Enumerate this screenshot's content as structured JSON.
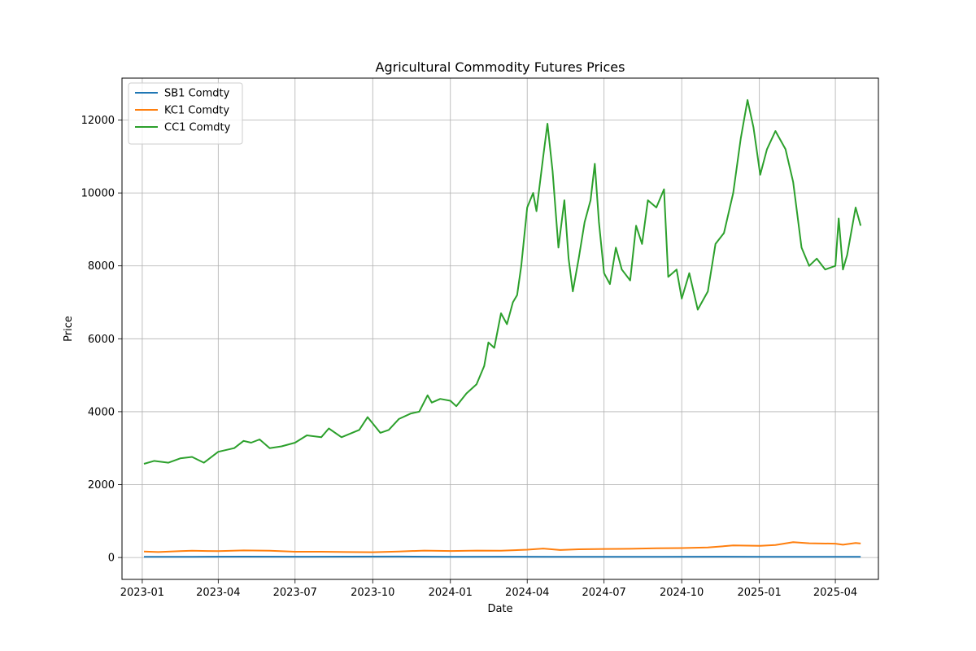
{
  "chart_data": {
    "type": "line",
    "title": "Agricultural Commodity Futures Prices",
    "xlabel": "Date",
    "ylabel": "Price",
    "xlim": [
      "2022-12-08",
      "2025-05-22"
    ],
    "ylim": [
      -600,
      13150
    ],
    "xticks": [
      "2023-01",
      "2023-04",
      "2023-07",
      "2023-10",
      "2024-01",
      "2024-04",
      "2024-07",
      "2024-10",
      "2025-01",
      "2025-04"
    ],
    "yticks": [
      0,
      2000,
      4000,
      6000,
      8000,
      10000,
      12000
    ],
    "grid": true,
    "legend_position": "top-left",
    "series": [
      {
        "name": "SB1 Comdty",
        "color": "#1f77b4",
        "points": [
          [
            "2023-01-03",
            19.5
          ],
          [
            "2023-03-01",
            20.5
          ],
          [
            "2023-05-01",
            24.5
          ],
          [
            "2023-07-01",
            23.5
          ],
          [
            "2023-09-01",
            25.5
          ],
          [
            "2023-11-01",
            27.0
          ],
          [
            "2024-01-02",
            21.0
          ],
          [
            "2024-03-01",
            22.0
          ],
          [
            "2024-05-01",
            19.5
          ],
          [
            "2024-07-01",
            20.5
          ],
          [
            "2024-09-01",
            21.5
          ],
          [
            "2024-11-01",
            22.0
          ],
          [
            "2025-01-02",
            19.5
          ],
          [
            "2025-03-01",
            19.0
          ],
          [
            "2025-05-01",
            17.5
          ]
        ]
      },
      {
        "name": "KC1 Comdty",
        "color": "#ff7f0e",
        "points": [
          [
            "2023-01-03",
            165
          ],
          [
            "2023-01-20",
            150
          ],
          [
            "2023-02-15",
            175
          ],
          [
            "2023-03-01",
            185
          ],
          [
            "2023-04-01",
            175
          ],
          [
            "2023-05-01",
            195
          ],
          [
            "2023-06-01",
            185
          ],
          [
            "2023-07-01",
            160
          ],
          [
            "2023-08-01",
            160
          ],
          [
            "2023-09-01",
            150
          ],
          [
            "2023-10-01",
            145
          ],
          [
            "2023-11-01",
            165
          ],
          [
            "2023-12-01",
            190
          ],
          [
            "2024-01-02",
            180
          ],
          [
            "2024-02-01",
            190
          ],
          [
            "2024-03-01",
            185
          ],
          [
            "2024-04-01",
            215
          ],
          [
            "2024-04-20",
            245
          ],
          [
            "2024-05-10",
            205
          ],
          [
            "2024-06-01",
            225
          ],
          [
            "2024-07-01",
            235
          ],
          [
            "2024-08-01",
            240
          ],
          [
            "2024-09-01",
            255
          ],
          [
            "2024-10-01",
            260
          ],
          [
            "2024-11-01",
            275
          ],
          [
            "2024-12-01",
            330
          ],
          [
            "2025-01-02",
            320
          ],
          [
            "2025-01-20",
            345
          ],
          [
            "2025-02-10",
            420
          ],
          [
            "2025-03-01",
            390
          ],
          [
            "2025-04-01",
            380
          ],
          [
            "2025-04-10",
            350
          ],
          [
            "2025-04-25",
            400
          ],
          [
            "2025-05-01",
            385
          ]
        ]
      },
      {
        "name": "CC1 Comdty",
        "color": "#2ca02c",
        "points": [
          [
            "2023-01-03",
            2570
          ],
          [
            "2023-01-15",
            2650
          ],
          [
            "2023-02-01",
            2600
          ],
          [
            "2023-02-15",
            2720
          ],
          [
            "2023-03-01",
            2760
          ],
          [
            "2023-03-15",
            2600
          ],
          [
            "2023-04-01",
            2900
          ],
          [
            "2023-04-20",
            3000
          ],
          [
            "2023-05-01",
            3200
          ],
          [
            "2023-05-10",
            3150
          ],
          [
            "2023-05-20",
            3240
          ],
          [
            "2023-06-01",
            3000
          ],
          [
            "2023-06-15",
            3050
          ],
          [
            "2023-07-01",
            3150
          ],
          [
            "2023-07-15",
            3350
          ],
          [
            "2023-08-01",
            3300
          ],
          [
            "2023-08-10",
            3540
          ],
          [
            "2023-08-25",
            3300
          ],
          [
            "2023-09-15",
            3500
          ],
          [
            "2023-09-25",
            3850
          ],
          [
            "2023-10-10",
            3420
          ],
          [
            "2023-10-20",
            3500
          ],
          [
            "2023-11-01",
            3800
          ],
          [
            "2023-11-15",
            3950
          ],
          [
            "2023-11-25",
            4000
          ],
          [
            "2023-12-05",
            4450
          ],
          [
            "2023-12-10",
            4250
          ],
          [
            "2023-12-20",
            4350
          ],
          [
            "2024-01-01",
            4300
          ],
          [
            "2024-01-08",
            4150
          ],
          [
            "2024-01-20",
            4500
          ],
          [
            "2024-02-01",
            4750
          ],
          [
            "2024-02-10",
            5250
          ],
          [
            "2024-02-15",
            5900
          ],
          [
            "2024-02-22",
            5750
          ],
          [
            "2024-03-01",
            6700
          ],
          [
            "2024-03-08",
            6400
          ],
          [
            "2024-03-15",
            7000
          ],
          [
            "2024-03-20",
            7200
          ],
          [
            "2024-03-25",
            8000
          ],
          [
            "2024-04-01",
            9600
          ],
          [
            "2024-04-08",
            10000
          ],
          [
            "2024-04-12",
            9500
          ],
          [
            "2024-04-20",
            11000
          ],
          [
            "2024-04-25",
            11900
          ],
          [
            "2024-05-01",
            10600
          ],
          [
            "2024-05-08",
            8500
          ],
          [
            "2024-05-15",
            9800
          ],
          [
            "2024-05-20",
            8200
          ],
          [
            "2024-05-25",
            7300
          ],
          [
            "2024-06-01",
            8200
          ],
          [
            "2024-06-08",
            9200
          ],
          [
            "2024-06-15",
            9800
          ],
          [
            "2024-06-20",
            10800
          ],
          [
            "2024-06-25",
            9200
          ],
          [
            "2024-07-01",
            7800
          ],
          [
            "2024-07-08",
            7500
          ],
          [
            "2024-07-15",
            8500
          ],
          [
            "2024-07-22",
            7900
          ],
          [
            "2024-08-01",
            7600
          ],
          [
            "2024-08-08",
            9100
          ],
          [
            "2024-08-15",
            8600
          ],
          [
            "2024-08-22",
            9800
          ],
          [
            "2024-09-01",
            9600
          ],
          [
            "2024-09-10",
            10100
          ],
          [
            "2024-09-15",
            7700
          ],
          [
            "2024-09-25",
            7900
          ],
          [
            "2024-10-01",
            7100
          ],
          [
            "2024-10-10",
            7800
          ],
          [
            "2024-10-20",
            6800
          ],
          [
            "2024-11-01",
            7300
          ],
          [
            "2024-11-10",
            8600
          ],
          [
            "2024-11-20",
            8900
          ],
          [
            "2024-12-01",
            10000
          ],
          [
            "2024-12-10",
            11500
          ],
          [
            "2024-12-18",
            12550
          ],
          [
            "2024-12-25",
            11800
          ],
          [
            "2025-01-02",
            10500
          ],
          [
            "2025-01-10",
            11200
          ],
          [
            "2025-01-20",
            11700
          ],
          [
            "2025-02-01",
            11200
          ],
          [
            "2025-02-10",
            10300
          ],
          [
            "2025-02-20",
            8500
          ],
          [
            "2025-03-01",
            8000
          ],
          [
            "2025-03-10",
            8200
          ],
          [
            "2025-03-20",
            7900
          ],
          [
            "2025-04-01",
            8000
          ],
          [
            "2025-04-05",
            9300
          ],
          [
            "2025-04-10",
            7900
          ],
          [
            "2025-04-15",
            8300
          ],
          [
            "2025-04-25",
            9600
          ],
          [
            "2025-05-01",
            9100
          ]
        ]
      }
    ]
  }
}
